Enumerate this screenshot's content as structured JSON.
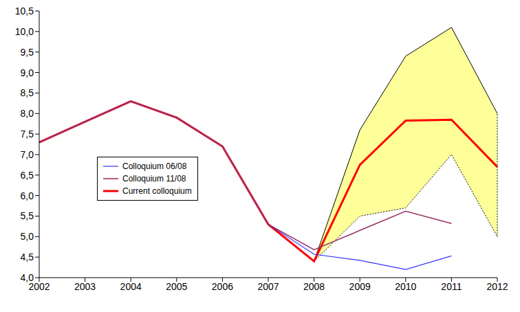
{
  "chart_data": {
    "type": "line",
    "categories": [
      "2002",
      "2003",
      "2004",
      "2005",
      "2006",
      "2007",
      "2008",
      "2009",
      "2010",
      "2011",
      "2012"
    ],
    "series": [
      {
        "name": "Colloquium 06/08",
        "color": "#3333ff",
        "values": [
          7.3,
          7.8,
          8.3,
          7.9,
          7.2,
          5.3,
          4.57,
          4.42,
          4.2,
          4.53,
          null
        ]
      },
      {
        "name": "Colloquium 11/08",
        "color": "#993366",
        "values": [
          7.3,
          7.8,
          8.3,
          7.9,
          7.2,
          5.3,
          4.68,
          5.15,
          5.62,
          5.32,
          null
        ]
      },
      {
        "name": "Current colloquium",
        "color": "#ff0000",
        "values": [
          7.3,
          7.8,
          8.3,
          7.9,
          7.2,
          5.3,
          4.4,
          6.75,
          7.83,
          7.85,
          6.7
        ]
      }
    ],
    "band": {
      "color": "#ffff99",
      "upper": {
        "color": "#000000",
        "line_style": "solid",
        "values": [
          null,
          null,
          null,
          null,
          null,
          null,
          4.4,
          7.6,
          9.4,
          10.1,
          8.0
        ]
      },
      "lower": {
        "color": "#000000",
        "line_style": "dotted",
        "values": [
          null,
          null,
          null,
          null,
          null,
          null,
          4.4,
          5.5,
          5.7,
          7.0,
          5.0
        ]
      }
    },
    "ylim": [
      4.0,
      10.5
    ],
    "yticks": [
      {
        "value": 4.0,
        "label": "4,0"
      },
      {
        "value": 4.5,
        "label": "4,5"
      },
      {
        "value": 5.0,
        "label": "5,0"
      },
      {
        "value": 5.5,
        "label": "5,5"
      },
      {
        "value": 6.0,
        "label": "6,0"
      },
      {
        "value": 6.5,
        "label": "6,5"
      },
      {
        "value": 7.0,
        "label": "7,0"
      },
      {
        "value": 7.5,
        "label": "7,5"
      },
      {
        "value": 8.0,
        "label": "8,0"
      },
      {
        "value": 8.5,
        "label": "8,5"
      },
      {
        "value": 9.0,
        "label": "9,0"
      },
      {
        "value": 9.5,
        "label": "9,5"
      },
      {
        "value": 10.0,
        "label": "10,0"
      },
      {
        "value": 10.5,
        "label": "10,5"
      }
    ],
    "grid": false,
    "legend": "left"
  }
}
